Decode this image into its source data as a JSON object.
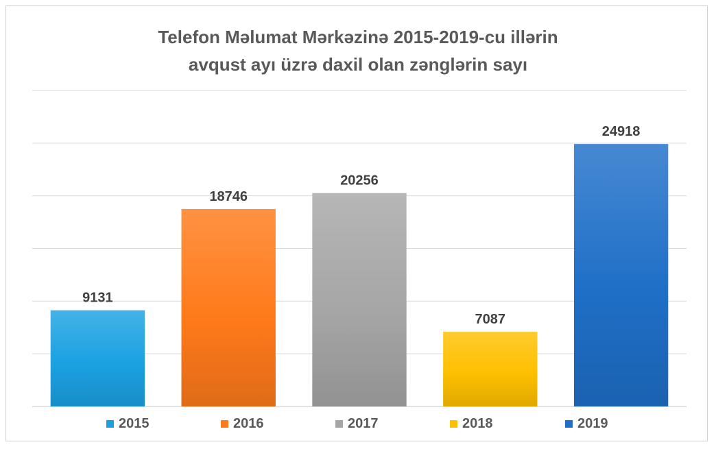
{
  "chart_data": {
    "type": "bar",
    "title_lines": [
      "Telefon Məlumat Mərkəzinə 2015-2019-cu illərin",
      "avqust ayı üzrə daxil olan zənglərin sayı"
    ],
    "categories": [
      "2015",
      "2016",
      "2017",
      "2018",
      "2019"
    ],
    "values": [
      9131,
      18746,
      20256,
      7087,
      24918
    ],
    "data_labels": [
      "9131",
      "18746",
      "20256",
      "7087",
      "24918"
    ],
    "colors": [
      "#1BA1E2",
      "#FF7A1A",
      "#A6A6A6",
      "#FFC000",
      "#1F6FC8"
    ],
    "ylim": [
      0,
      30000
    ],
    "grid": true,
    "legend_position": "bottom",
    "xlabel": "",
    "ylabel": ""
  }
}
